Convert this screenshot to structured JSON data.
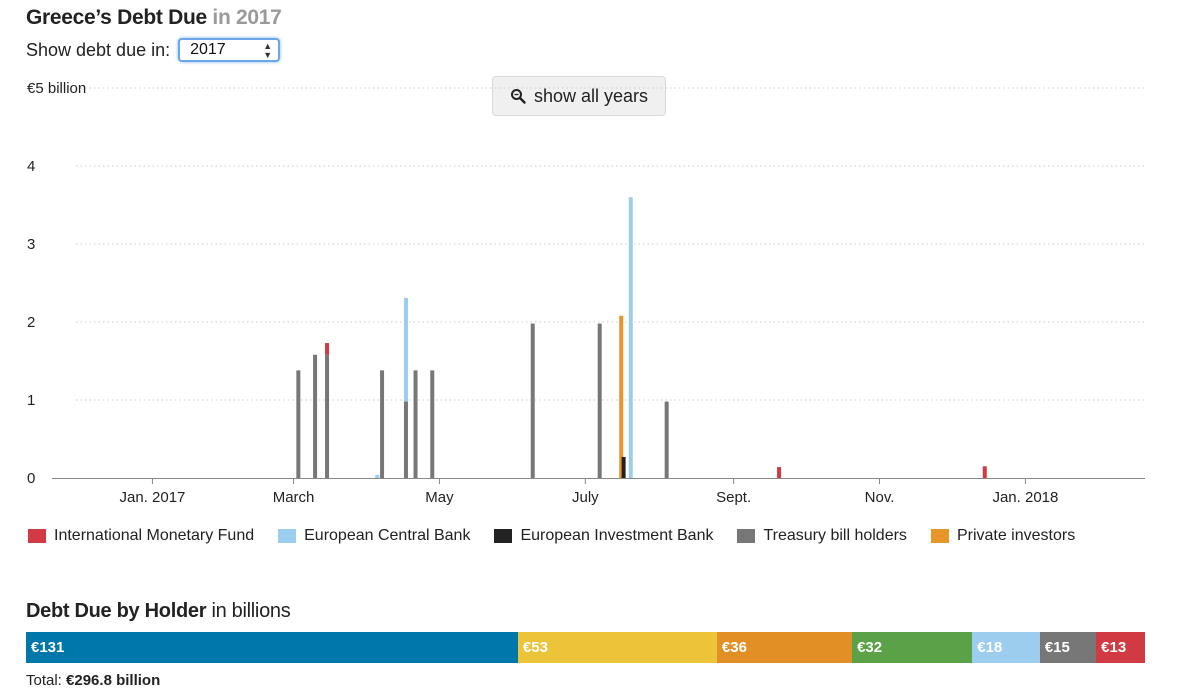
{
  "header": {
    "title": "Greece’s Debt Due",
    "year_suffix": " in 2017"
  },
  "controls": {
    "select_label": "Show debt due in:",
    "select_value": "2017",
    "zoom_label": "show all years",
    "zoom_icon": "magnifier-icon"
  },
  "colors": {
    "imf": "#d13a43",
    "ecb": "#9dcdee",
    "eib": "#222222",
    "treasury": "#777777",
    "private": "#e8952a"
  },
  "chart_data": [
    {
      "type": "bar",
      "stacked": true,
      "title": "",
      "xlabel": "",
      "ylabel": "",
      "ylim": [
        0,
        5
      ],
      "y_ticks": [
        {
          "value": 0,
          "label": "0"
        },
        {
          "value": 1,
          "label": "1"
        },
        {
          "value": 2,
          "label": "2"
        },
        {
          "value": 3,
          "label": "3"
        },
        {
          "value": 4,
          "label": "4"
        },
        {
          "value": 5,
          "label": "€5 billion"
        }
      ],
      "x_range": [
        "2016-11-20",
        "2018-02-20"
      ],
      "x_ticks": [
        {
          "date": "2017-01-01",
          "label": "Jan. 2017"
        },
        {
          "date": "2017-03-01",
          "label": "March"
        },
        {
          "date": "2017-05-01",
          "label": "May"
        },
        {
          "date": "2017-07-01",
          "label": "July"
        },
        {
          "date": "2017-09-01",
          "label": "Sept."
        },
        {
          "date": "2017-11-01",
          "label": "Nov."
        },
        {
          "date": "2018-01-01",
          "label": "Jan. 2018"
        }
      ],
      "grid": true,
      "legend_position": "bottom-left",
      "series": [
        {
          "name": "International Monetary Fund",
          "color_key": "imf",
          "points": [
            {
              "date": "2017-03-15",
              "value": 0.15
            },
            {
              "date": "2017-09-20",
              "value": 0.14
            },
            {
              "date": "2017-12-15",
              "value": 0.15
            }
          ]
        },
        {
          "name": "European Central Bank",
          "color_key": "ecb",
          "points": [
            {
              "date": "2017-04-05",
              "value": 0.04
            },
            {
              "date": "2017-04-17",
              "value": 1.33
            },
            {
              "date": "2017-07-20",
              "value": 3.6
            }
          ]
        },
        {
          "name": "European Investment Bank",
          "color_key": "eib",
          "points": [
            {
              "date": "2017-07-17",
              "value": 0.27
            }
          ]
        },
        {
          "name": "Treasury bill holders",
          "color_key": "treasury",
          "points": [
            {
              "date": "2017-03-03",
              "value": 1.38
            },
            {
              "date": "2017-03-10",
              "value": 1.58
            },
            {
              "date": "2017-03-15",
              "value": 1.58
            },
            {
              "date": "2017-04-07",
              "value": 1.38
            },
            {
              "date": "2017-04-17",
              "value": 0.98
            },
            {
              "date": "2017-04-21",
              "value": 1.38
            },
            {
              "date": "2017-04-28",
              "value": 1.38
            },
            {
              "date": "2017-06-09",
              "value": 1.98
            },
            {
              "date": "2017-07-07",
              "value": 1.98
            },
            {
              "date": "2017-08-04",
              "value": 0.98
            }
          ]
        },
        {
          "name": "Private investors",
          "color_key": "private",
          "points": [
            {
              "date": "2017-07-16",
              "value": 2.08
            }
          ]
        }
      ]
    },
    {
      "type": "bar",
      "stacked": true,
      "orientation": "horizontal",
      "title": "Debt Due by Holder",
      "title_suffix": " in billions",
      "segments": [
        {
          "label": "€131",
          "value": 131,
          "color": "#0077aa"
        },
        {
          "label": "€53",
          "value": 53,
          "color": "#ecc43a"
        },
        {
          "label": "€36",
          "value": 36,
          "color": "#e28f25"
        },
        {
          "label": "€32",
          "value": 32,
          "color": "#5ba147"
        },
        {
          "label": "€18",
          "value": 18,
          "color": "#9dcdee"
        },
        {
          "label": "€15",
          "value": 15,
          "color": "#777777"
        },
        {
          "label": "€13",
          "value": 13,
          "color": "#d13a43"
        }
      ],
      "total_label": "Total:",
      "total_value": "€296.8 billion"
    }
  ]
}
